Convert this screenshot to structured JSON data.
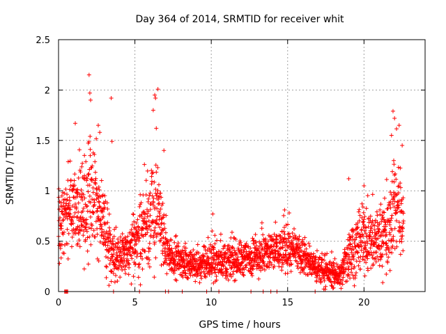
{
  "chart_data": {
    "type": "scatter",
    "title": "Day 364 of 2014, SRMTID for receiver whit",
    "xlabel": "GPS time / hours",
    "ylabel": "SRMTID / TECUs",
    "xlim": [
      0,
      24
    ],
    "ylim": [
      0,
      2.5
    ],
    "x_ticks": [
      0,
      5,
      10,
      15,
      20
    ],
    "x_tick_labels": [
      "0",
      "5",
      "10",
      "15",
      "20"
    ],
    "y_ticks": [
      0,
      0.5,
      1,
      1.5,
      2,
      2.5
    ],
    "y_tick_labels": [
      "0",
      "0.5",
      "1",
      "1.5",
      "2",
      "2.5"
    ],
    "grid": true,
    "marker": "plus",
    "color": "#ff0000",
    "data_x_range": [
      0,
      22.6
    ],
    "activity_envelope": [
      {
        "x": 0,
        "base": 0.7,
        "spread": 0.3
      },
      {
        "x": 1,
        "base": 0.8,
        "spread": 0.35
      },
      {
        "x": 2,
        "base": 0.85,
        "spread": 0.45
      },
      {
        "x": 2.5,
        "base": 0.9,
        "spread": 0.45
      },
      {
        "x": 3,
        "base": 0.6,
        "spread": 0.35
      },
      {
        "x": 3.5,
        "base": 0.4,
        "spread": 0.2
      },
      {
        "x": 4.5,
        "base": 0.35,
        "spread": 0.2
      },
      {
        "x": 5.5,
        "base": 0.6,
        "spread": 0.35
      },
      {
        "x": 6.5,
        "base": 0.85,
        "spread": 0.45
      },
      {
        "x": 7,
        "base": 0.4,
        "spread": 0.2
      },
      {
        "x": 8,
        "base": 0.3,
        "spread": 0.12
      },
      {
        "x": 9,
        "base": 0.25,
        "spread": 0.12
      },
      {
        "x": 10,
        "base": 0.3,
        "spread": 0.15
      },
      {
        "x": 12,
        "base": 0.32,
        "spread": 0.15
      },
      {
        "x": 14,
        "base": 0.4,
        "spread": 0.18
      },
      {
        "x": 15,
        "base": 0.42,
        "spread": 0.18
      },
      {
        "x": 16,
        "base": 0.35,
        "spread": 0.15
      },
      {
        "x": 17,
        "base": 0.22,
        "spread": 0.12
      },
      {
        "x": 18.5,
        "base": 0.15,
        "spread": 0.1
      },
      {
        "x": 19,
        "base": 0.4,
        "spread": 0.25
      },
      {
        "x": 20,
        "base": 0.5,
        "spread": 0.25
      },
      {
        "x": 21.5,
        "base": 0.55,
        "spread": 0.3
      },
      {
        "x": 22,
        "base": 0.9,
        "spread": 0.45
      },
      {
        "x": 22.6,
        "base": 0.7,
        "spread": 0.3
      }
    ],
    "highlight_points": [
      {
        "x": 2.0,
        "y": 2.15
      },
      {
        "x": 2.05,
        "y": 1.97
      },
      {
        "x": 2.1,
        "y": 1.9
      },
      {
        "x": 2.6,
        "y": 1.65
      },
      {
        "x": 2.7,
        "y": 1.58
      },
      {
        "x": 3.45,
        "y": 1.92
      },
      {
        "x": 3.5,
        "y": 1.49
      },
      {
        "x": 6.2,
        "y": 1.8
      },
      {
        "x": 6.3,
        "y": 1.95
      },
      {
        "x": 6.35,
        "y": 1.92
      },
      {
        "x": 6.4,
        "y": 1.62
      },
      {
        "x": 6.9,
        "y": 1.4
      },
      {
        "x": 10.1,
        "y": 0.77
      },
      {
        "x": 14.8,
        "y": 0.81
      },
      {
        "x": 15.1,
        "y": 0.78
      },
      {
        "x": 19.0,
        "y": 1.12
      },
      {
        "x": 20.0,
        "y": 1.05
      },
      {
        "x": 21.9,
        "y": 1.79
      },
      {
        "x": 22.0,
        "y": 1.72
      },
      {
        "x": 22.3,
        "y": 1.65
      },
      {
        "x": 22.5,
        "y": 1.45
      },
      {
        "x": 21.8,
        "y": 1.55
      }
    ],
    "zero_points_x": [
      0.4,
      0.45,
      0.5,
      0.55,
      0.6,
      3.6,
      5.3,
      7.0,
      7.2,
      8.1,
      9.7,
      10.5,
      12.6,
      13.4,
      13.9,
      14.3,
      16.8
    ]
  }
}
